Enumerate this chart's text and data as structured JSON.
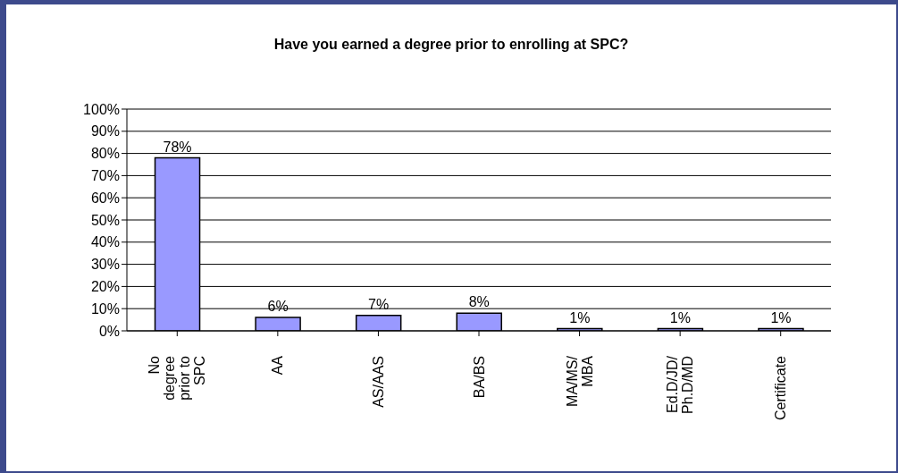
{
  "chart_data": {
    "type": "bar",
    "title": "Have you earned a degree prior to enrolling at SPC?",
    "categories": [
      "No degree prior to SPC",
      "AA",
      "AS/AAS",
      "BA/BS",
      "MA/MS/MBA",
      "Ed.D/JD/Ph.D/MD",
      "Certificate"
    ],
    "values": [
      78,
      6,
      7,
      8,
      1,
      1,
      1
    ],
    "color": "#9999ff",
    "ylim": [
      0,
      100
    ],
    "yticks": [
      {
        "value": 0,
        "label": "0%"
      },
      {
        "value": 10,
        "label": "10%"
      },
      {
        "value": 20,
        "label": "20%"
      },
      {
        "value": 30,
        "label": "30%"
      },
      {
        "value": 40,
        "label": "40%"
      },
      {
        "value": 50,
        "label": "50%"
      },
      {
        "value": 60,
        "label": "60%"
      },
      {
        "value": 70,
        "label": "70%"
      },
      {
        "value": 80,
        "label": "80%"
      },
      {
        "value": 90,
        "label": "90%"
      },
      {
        "value": 100,
        "label": "100%"
      }
    ],
    "value_labels": [
      "78%",
      "6%",
      "7%",
      "8%",
      "1%",
      "1%",
      "1%"
    ],
    "grid": "y",
    "legend": false
  }
}
